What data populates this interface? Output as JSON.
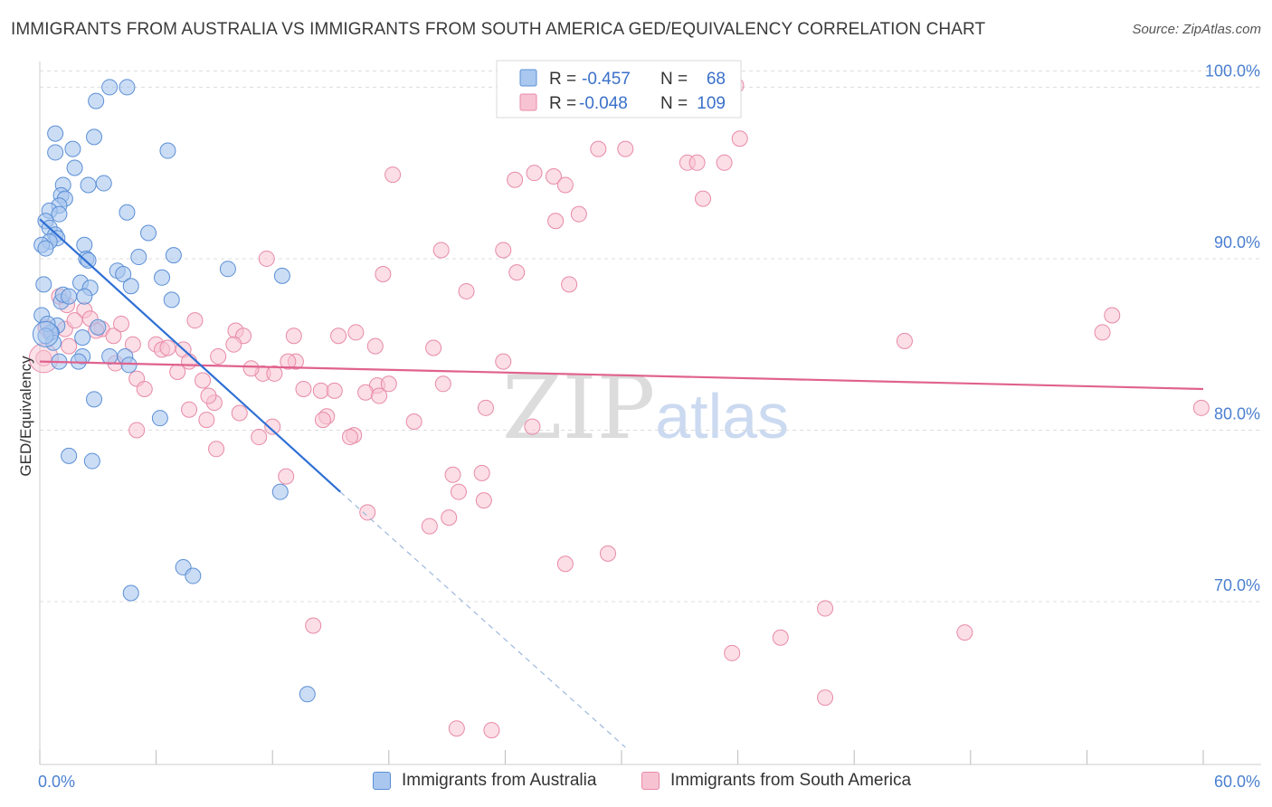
{
  "title": "IMMIGRANTS FROM AUSTRALIA VS IMMIGRANTS FROM SOUTH AMERICA GED/EQUIVALENCY CORRELATION CHART",
  "source": "Source: ZipAtlas.com",
  "watermark": {
    "zip": "ZIP",
    "atlas": "atlas"
  },
  "colors": {
    "blue_fill": "#a9c7ef",
    "blue_stroke": "#5b8fd6",
    "blue_line": "#2e6fd4",
    "pink_fill": "#f7c3d2",
    "pink_stroke": "#e88aa8",
    "pink_line": "#e0628e",
    "grid": "#dcdcdc",
    "axis_text": "#4a7fd0"
  },
  "stats": {
    "rows": [
      {
        "r_label": "R = ",
        "r_value": "-0.457",
        "n_label": "N = ",
        "n_value": "68"
      },
      {
        "r_label": "R = ",
        "r_value": "-0.048",
        "n_label": "N = ",
        "n_value": "109"
      }
    ]
  },
  "chart_data": {
    "type": "scatter",
    "title": "IMMIGRANTS FROM AUSTRALIA VS IMMIGRANTS FROM SOUTH AMERICA GED/EQUIVALENCY CORRELATION CHART",
    "xlabel": "",
    "ylabel": "GED/Equivalency",
    "xlim": [
      0,
      60
    ],
    "ylim": [
      60.5,
      101.5
    ],
    "x_tick_labels": [
      "0.0%",
      "60.0%"
    ],
    "y_ticks": [
      70,
      80,
      90,
      100
    ],
    "y_tick_labels": [
      "70.0%",
      "80.0%",
      "90.0%",
      "100.0%"
    ],
    "grid": true,
    "legend_position": "bottom",
    "series": [
      {
        "name": "Immigrants from Australia",
        "color": "#a9c7ef",
        "r": -0.457,
        "n": 68,
        "trend": {
          "x0": 0,
          "y0": 92.3,
          "x1": 15.5,
          "y1": 76.4,
          "dash_to_x": 30.2,
          "dash_to_y": 61.5
        },
        "points": [
          [
            3.6,
            100
          ],
          [
            4.5,
            100
          ],
          [
            2.9,
            99.2
          ],
          [
            0.8,
            97.3
          ],
          [
            2.8,
            97.1
          ],
          [
            1.7,
            96.4
          ],
          [
            0.8,
            96.2
          ],
          [
            6.6,
            96.3
          ],
          [
            1.8,
            95.3
          ],
          [
            3.3,
            94.4
          ],
          [
            1.2,
            94.3
          ],
          [
            2.5,
            94.3
          ],
          [
            1.1,
            93.7
          ],
          [
            1.3,
            93.5
          ],
          [
            1.0,
            93.1
          ],
          [
            0.5,
            92.8
          ],
          [
            1.0,
            92.6
          ],
          [
            4.5,
            92.7
          ],
          [
            0.3,
            92.2
          ],
          [
            0.5,
            91.8
          ],
          [
            5.6,
            91.5
          ],
          [
            0.8,
            91.4
          ],
          [
            0.9,
            91.2
          ],
          [
            0.5,
            91.0
          ],
          [
            0.1,
            90.8
          ],
          [
            2.3,
            90.8
          ],
          [
            0.3,
            90.6
          ],
          [
            5.1,
            90.1
          ],
          [
            6.9,
            90.2
          ],
          [
            2.4,
            90.0
          ],
          [
            2.5,
            89.9
          ],
          [
            9.7,
            89.4
          ],
          [
            4.0,
            89.3
          ],
          [
            4.3,
            89.1
          ],
          [
            6.3,
            88.9
          ],
          [
            12.5,
            89.0
          ],
          [
            2.1,
            88.6
          ],
          [
            2.6,
            88.3
          ],
          [
            4.7,
            88.4
          ],
          [
            2.3,
            87.8
          ],
          [
            1.1,
            87.5
          ],
          [
            6.8,
            87.6
          ],
          [
            1.2,
            87.9
          ],
          [
            0.1,
            86.7
          ],
          [
            0.9,
            86.1
          ],
          [
            0.6,
            85.7
          ],
          [
            2.2,
            85.4
          ],
          [
            0.7,
            85.1
          ],
          [
            2.2,
            84.3
          ],
          [
            2.0,
            84.0
          ],
          [
            3.6,
            84.3
          ],
          [
            4.4,
            84.3
          ],
          [
            4.6,
            83.8
          ],
          [
            2.8,
            81.8
          ],
          [
            6.2,
            80.7
          ],
          [
            1.5,
            78.5
          ],
          [
            2.7,
            78.2
          ],
          [
            12.4,
            76.4
          ],
          [
            7.4,
            72.0
          ],
          [
            7.9,
            71.5
          ],
          [
            4.7,
            70.5
          ],
          [
            13.8,
            64.6
          ],
          [
            0.4,
            86.2
          ],
          [
            1.5,
            87.8
          ],
          [
            0.3,
            85.5
          ],
          [
            1.0,
            84.0
          ],
          [
            3.0,
            86.0
          ],
          [
            0.2,
            88.5
          ]
        ]
      },
      {
        "name": "Immigrants from South America",
        "color": "#f7c3d2",
        "r": -0.048,
        "n": 109,
        "trend": {
          "x0": 0,
          "y0": 84.0,
          "x1": 60,
          "y1": 82.4
        },
        "points": [
          [
            35.9,
            100.1
          ],
          [
            36.1,
            97.0
          ],
          [
            28.8,
            96.4
          ],
          [
            30.2,
            96.4
          ],
          [
            33.4,
            95.6
          ],
          [
            33.9,
            95.6
          ],
          [
            35.3,
            95.6
          ],
          [
            25.5,
            95.0
          ],
          [
            26.5,
            94.8
          ],
          [
            27.1,
            94.3
          ],
          [
            18.2,
            94.9
          ],
          [
            24.5,
            94.6
          ],
          [
            34.2,
            93.5
          ],
          [
            27.8,
            92.6
          ],
          [
            26.6,
            92.2
          ],
          [
            20.7,
            90.5
          ],
          [
            23.9,
            90.5
          ],
          [
            11.7,
            90.0
          ],
          [
            17.7,
            89.1
          ],
          [
            24.6,
            89.2
          ],
          [
            27.3,
            88.5
          ],
          [
            22.0,
            88.1
          ],
          [
            55.3,
            86.7
          ],
          [
            54.8,
            85.7
          ],
          [
            1.0,
            87.8
          ],
          [
            1.4,
            87.3
          ],
          [
            2.3,
            87.0
          ],
          [
            8.0,
            86.4
          ],
          [
            2.6,
            86.5
          ],
          [
            3.2,
            85.9
          ],
          [
            1.3,
            85.9
          ],
          [
            10.1,
            85.8
          ],
          [
            10.5,
            85.5
          ],
          [
            13.1,
            85.5
          ],
          [
            15.4,
            85.5
          ],
          [
            16.3,
            85.7
          ],
          [
            6.0,
            85.0
          ],
          [
            4.8,
            85.0
          ],
          [
            6.3,
            84.7
          ],
          [
            7.4,
            84.7
          ],
          [
            10.0,
            85.0
          ],
          [
            17.3,
            84.9
          ],
          [
            20.3,
            84.8
          ],
          [
            9.2,
            84.3
          ],
          [
            7.7,
            84.0
          ],
          [
            13.2,
            84.0
          ],
          [
            23.9,
            84.0
          ],
          [
            3.9,
            83.9
          ],
          [
            5.0,
            83.0
          ],
          [
            7.1,
            83.4
          ],
          [
            11.5,
            83.3
          ],
          [
            12.1,
            83.3
          ],
          [
            8.4,
            82.9
          ],
          [
            13.6,
            82.4
          ],
          [
            14.5,
            82.3
          ],
          [
            15.2,
            82.3
          ],
          [
            17.4,
            82.6
          ],
          [
            18.0,
            82.7
          ],
          [
            20.8,
            82.7
          ],
          [
            16.8,
            82.2
          ],
          [
            5.4,
            82.4
          ],
          [
            17.5,
            82.0
          ],
          [
            9.0,
            81.6
          ],
          [
            7.7,
            81.2
          ],
          [
            10.3,
            81.0
          ],
          [
            14.8,
            80.8
          ],
          [
            19.3,
            80.5
          ],
          [
            23.0,
            81.3
          ],
          [
            8.6,
            80.6
          ],
          [
            5.0,
            80.0
          ],
          [
            12.0,
            80.2
          ],
          [
            16.2,
            79.7
          ],
          [
            16.0,
            79.6
          ],
          [
            11.3,
            79.6
          ],
          [
            9.1,
            78.9
          ],
          [
            25.4,
            80.2
          ],
          [
            21.3,
            77.4
          ],
          [
            22.8,
            77.5
          ],
          [
            12.7,
            77.3
          ],
          [
            21.6,
            76.4
          ],
          [
            22.9,
            75.9
          ],
          [
            16.9,
            75.2
          ],
          [
            21.1,
            74.9
          ],
          [
            20.1,
            74.4
          ],
          [
            29.3,
            72.8
          ],
          [
            27.1,
            72.2
          ],
          [
            40.5,
            69.6
          ],
          [
            35.7,
            67.0
          ],
          [
            38.2,
            67.9
          ],
          [
            47.7,
            68.2
          ],
          [
            14.1,
            68.6
          ],
          [
            40.5,
            64.4
          ],
          [
            21.5,
            62.6
          ],
          [
            23.3,
            62.5
          ],
          [
            0.2,
            84.2
          ],
          [
            0.5,
            85.7
          ],
          [
            1.8,
            86.4
          ],
          [
            2.9,
            85.8
          ],
          [
            3.8,
            85.5
          ],
          [
            4.2,
            86.2
          ],
          [
            6.6,
            84.8
          ],
          [
            8.7,
            82.0
          ],
          [
            10.9,
            83.6
          ],
          [
            14.6,
            80.6
          ],
          [
            44.6,
            85.2
          ],
          [
            59.9,
            81.3
          ],
          [
            0.3,
            86.0
          ],
          [
            1.5,
            84.9
          ],
          [
            12.8,
            84.0
          ]
        ]
      }
    ]
  }
}
